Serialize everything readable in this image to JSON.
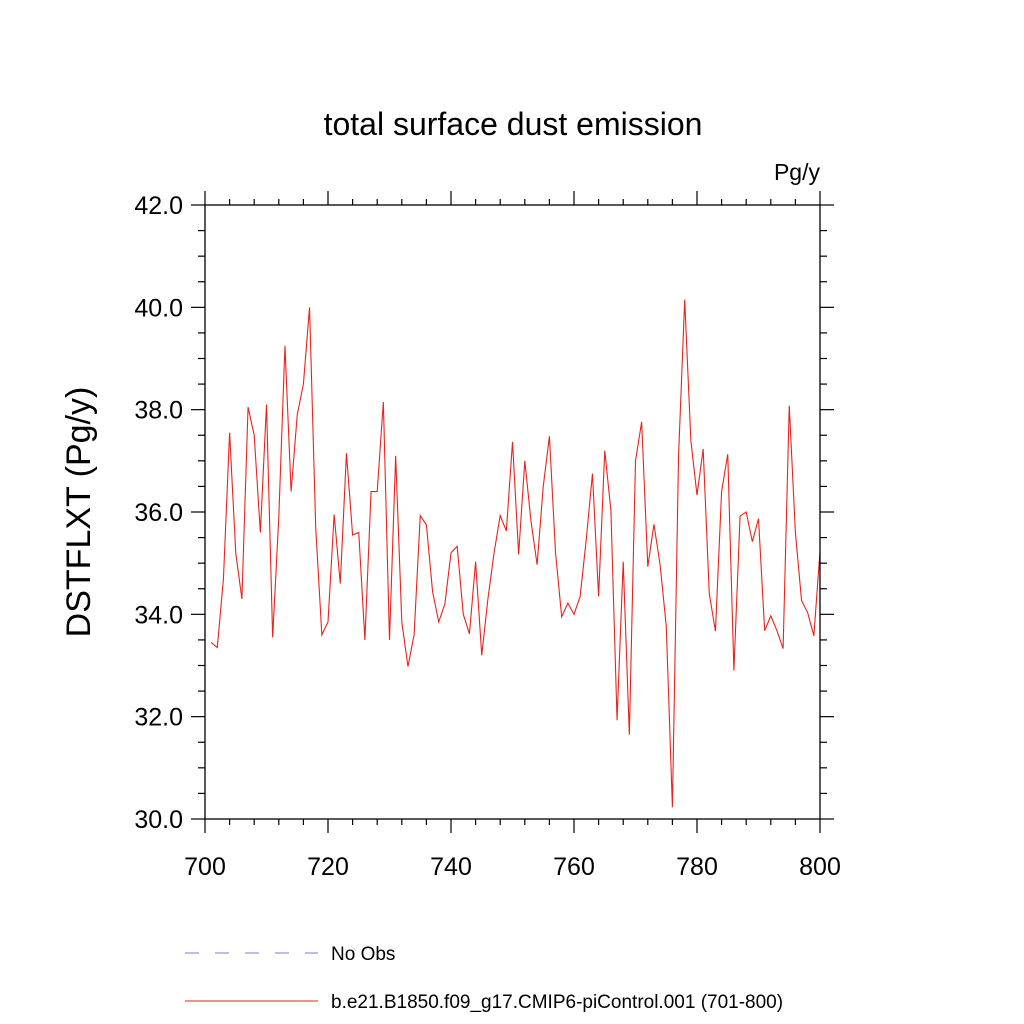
{
  "chart_data": {
    "type": "line",
    "title": "total surface dust emission",
    "units_label": "Pg/y",
    "xlabel": "",
    "ylabel": "DSTFLXT  (Pg/y)",
    "xlim": [
      700,
      800
    ],
    "ylim": [
      30,
      42
    ],
    "x_ticks": [
      700,
      720,
      740,
      760,
      780,
      800
    ],
    "x_tick_labels": [
      "700",
      "720",
      "740",
      "760",
      "780",
      "800"
    ],
    "y_ticks": [
      30,
      32,
      34,
      36,
      38,
      40,
      42
    ],
    "y_tick_labels": [
      "30.0",
      "32.0",
      "34.0",
      "36.0",
      "38.0",
      "40.0",
      "42.0"
    ],
    "series": [
      {
        "name": "b.e21.B1850.f09_g17.CMIP6-piControl.001 (701-800)",
        "color": "#e8231d",
        "x": [
          701,
          702,
          703,
          704,
          705,
          706,
          707,
          708,
          709,
          710,
          711,
          712,
          713,
          714,
          715,
          716,
          717,
          718,
          719,
          720,
          721,
          722,
          723,
          724,
          725,
          726,
          727,
          728,
          729,
          730,
          731,
          732,
          733,
          734,
          735,
          736,
          737,
          738,
          739,
          740,
          741,
          742,
          743,
          744,
          745,
          746,
          747,
          748,
          749,
          750,
          751,
          752,
          753,
          754,
          755,
          756,
          757,
          758,
          759,
          760,
          761,
          762,
          763,
          764,
          765,
          766,
          767,
          768,
          769,
          770,
          771,
          772,
          773,
          774,
          775,
          776,
          777,
          778,
          779,
          780,
          781,
          782,
          783,
          784,
          785,
          786,
          787,
          788,
          789,
          790,
          791,
          792,
          793,
          794,
          795,
          796,
          797,
          798,
          799,
          800
        ],
        "values": [
          33.45,
          33.35,
          34.7,
          37.55,
          35.2,
          34.3,
          38.05,
          37.5,
          35.6,
          38.1,
          33.55,
          35.9,
          39.25,
          36.4,
          37.9,
          38.5,
          40.0,
          35.7,
          33.6,
          33.85,
          35.95,
          34.6,
          37.15,
          35.55,
          35.6,
          33.5,
          36.4,
          36.4,
          38.15,
          33.5,
          37.1,
          33.85,
          32.98,
          33.6,
          35.93,
          35.75,
          34.45,
          33.85,
          34.2,
          35.2,
          35.33,
          34.0,
          33.62,
          35.03,
          33.2,
          34.3,
          35.2,
          35.93,
          35.63,
          37.37,
          35.17,
          37.0,
          35.83,
          34.97,
          36.5,
          37.48,
          35.2,
          33.95,
          34.22,
          34.0,
          34.35,
          35.47,
          36.75,
          34.35,
          37.2,
          36.03,
          31.93,
          35.03,
          31.65,
          37.0,
          37.76,
          34.93,
          35.76,
          34.97,
          33.77,
          30.23,
          37.1,
          40.15,
          37.4,
          36.33,
          37.23,
          34.4,
          33.67,
          36.4,
          37.13,
          32.9,
          35.92,
          36.0,
          35.42,
          35.87,
          33.68,
          33.97,
          33.68,
          33.33,
          38.08,
          35.6,
          34.27,
          34.03,
          33.58,
          35.23
        ]
      },
      {
        "name": "No Obs",
        "color": "#7b7bd6",
        "x": [],
        "values": []
      }
    ],
    "legend_position": "bottom"
  }
}
